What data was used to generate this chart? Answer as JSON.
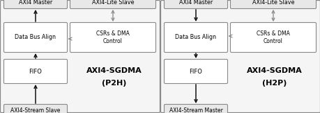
{
  "bg_color": "#ffffff",
  "box_face_gray": "#e8e8e8",
  "box_face_white": "#ffffff",
  "box_edge": "#888888",
  "arrow_black": "#111111",
  "arrow_gray": "#888888",
  "diagrams": [
    {
      "title1": "AXI4-SGDMA",
      "title2": "(P2H)",
      "top_left": "AXI4 Master",
      "top_right": "AXI4-Lite Slave",
      "mid_left": "Data Bus Align",
      "mid_right": "CSRs & DMA\nControl",
      "mid_box": "FIFO",
      "bottom": "AXI4-Stream Slave",
      "p2h": true
    },
    {
      "title1": "AXI4-SGDMA",
      "title2": "(H2P)",
      "top_left": "AXI4 Master",
      "top_right": "AXI4-Lite Slave",
      "mid_left": "Data Bus Align",
      "mid_right": "CSRs & DMA\nControl",
      "mid_box": "FIFO",
      "bottom": "AXI4-Stream Master",
      "p2h": false
    }
  ]
}
